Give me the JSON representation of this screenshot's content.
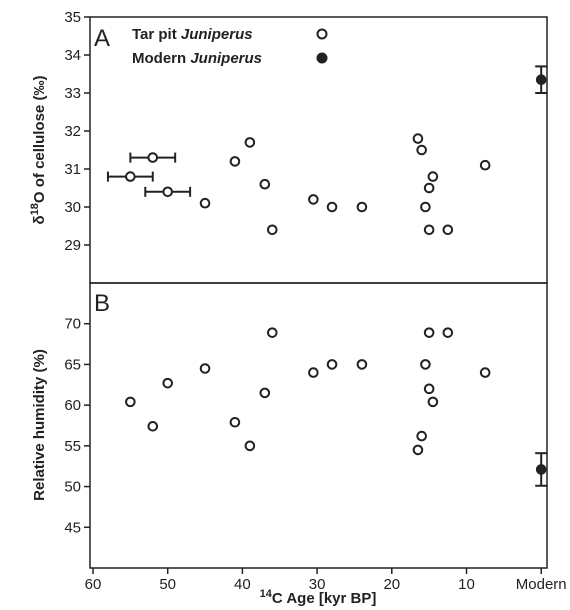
{
  "chart_data": [
    {
      "type": "scatter",
      "panel": "A",
      "ylabel_parts": [
        "δ",
        "18",
        "O of cellulose (‰)"
      ],
      "ylim": [
        28,
        35
      ],
      "yticks": [
        29,
        30,
        31,
        32,
        33,
        34,
        35
      ],
      "xlim": [
        60,
        0
      ],
      "legend": {
        "placement": "top-left",
        "entries": [
          {
            "parts": [
              "Tar pit ",
              "Juniperus"
            ],
            "marker": "open-circle"
          },
          {
            "parts": [
              "Modern ",
              "Juniperus"
            ],
            "marker": "filled-circle"
          }
        ]
      },
      "series": [
        {
          "name": "Tar pit Juniperus",
          "marker": "open-circle",
          "points": [
            {
              "x": 52,
              "y": 31.3,
              "xerr": 3
            },
            {
              "x": 55,
              "y": 30.8,
              "xerr": 3
            },
            {
              "x": 50,
              "y": 30.4,
              "xerr": 3
            },
            {
              "x": 45,
              "y": 30.1
            },
            {
              "x": 41,
              "y": 31.2
            },
            {
              "x": 39,
              "y": 31.7
            },
            {
              "x": 37,
              "y": 30.6
            },
            {
              "x": 36,
              "y": 29.4
            },
            {
              "x": 30.5,
              "y": 30.2
            },
            {
              "x": 28,
              "y": 30.0
            },
            {
              "x": 24,
              "y": 30.0
            },
            {
              "x": 16.5,
              "y": 31.8
            },
            {
              "x": 16,
              "y": 31.5
            },
            {
              "x": 14.5,
              "y": 30.8
            },
            {
              "x": 15,
              "y": 30.5
            },
            {
              "x": 15.5,
              "y": 30.0
            },
            {
              "x": 15,
              "y": 29.4
            },
            {
              "x": 12.5,
              "y": 29.4
            },
            {
              "x": 7.5,
              "y": 31.1
            }
          ]
        },
        {
          "name": "Modern Juniperus",
          "marker": "filled-circle",
          "points": [
            {
              "x": 0,
              "y": 33.35,
              "yerr": 0.35
            }
          ]
        }
      ]
    },
    {
      "type": "scatter",
      "panel": "B",
      "ylabel": "Relative humidity (%)",
      "ylim": [
        40,
        75
      ],
      "yticks": [
        45,
        50,
        55,
        60,
        65,
        70
      ],
      "xlim": [
        60,
        0
      ],
      "xticks": [
        60,
        50,
        40,
        30,
        20,
        10
      ],
      "xtick_modern": "Modern",
      "xlabel_parts": [
        "14",
        "C Age [kyr BP]"
      ],
      "series": [
        {
          "name": "Tar pit Juniperus",
          "marker": "open-circle",
          "points": [
            {
              "x": 55,
              "y": 60.4
            },
            {
              "x": 52,
              "y": 57.4
            },
            {
              "x": 50,
              "y": 62.7
            },
            {
              "x": 45,
              "y": 64.5
            },
            {
              "x": 41,
              "y": 57.9
            },
            {
              "x": 39,
              "y": 55.0
            },
            {
              "x": 37,
              "y": 61.5
            },
            {
              "x": 36,
              "y": 68.9
            },
            {
              "x": 30.5,
              "y": 64.0
            },
            {
              "x": 28,
              "y": 65.0
            },
            {
              "x": 24,
              "y": 65.0
            },
            {
              "x": 16.5,
              "y": 54.5
            },
            {
              "x": 16,
              "y": 56.2
            },
            {
              "x": 15.5,
              "y": 65.0
            },
            {
              "x": 15,
              "y": 68.9
            },
            {
              "x": 15,
              "y": 62.0
            },
            {
              "x": 14.5,
              "y": 60.4
            },
            {
              "x": 12.5,
              "y": 68.9
            },
            {
              "x": 7.5,
              "y": 64.0
            }
          ]
        },
        {
          "name": "Modern Juniperus",
          "marker": "filled-circle",
          "points": [
            {
              "x": 0,
              "y": 52.1,
              "yerr": 2.0
            }
          ]
        }
      ]
    }
  ]
}
